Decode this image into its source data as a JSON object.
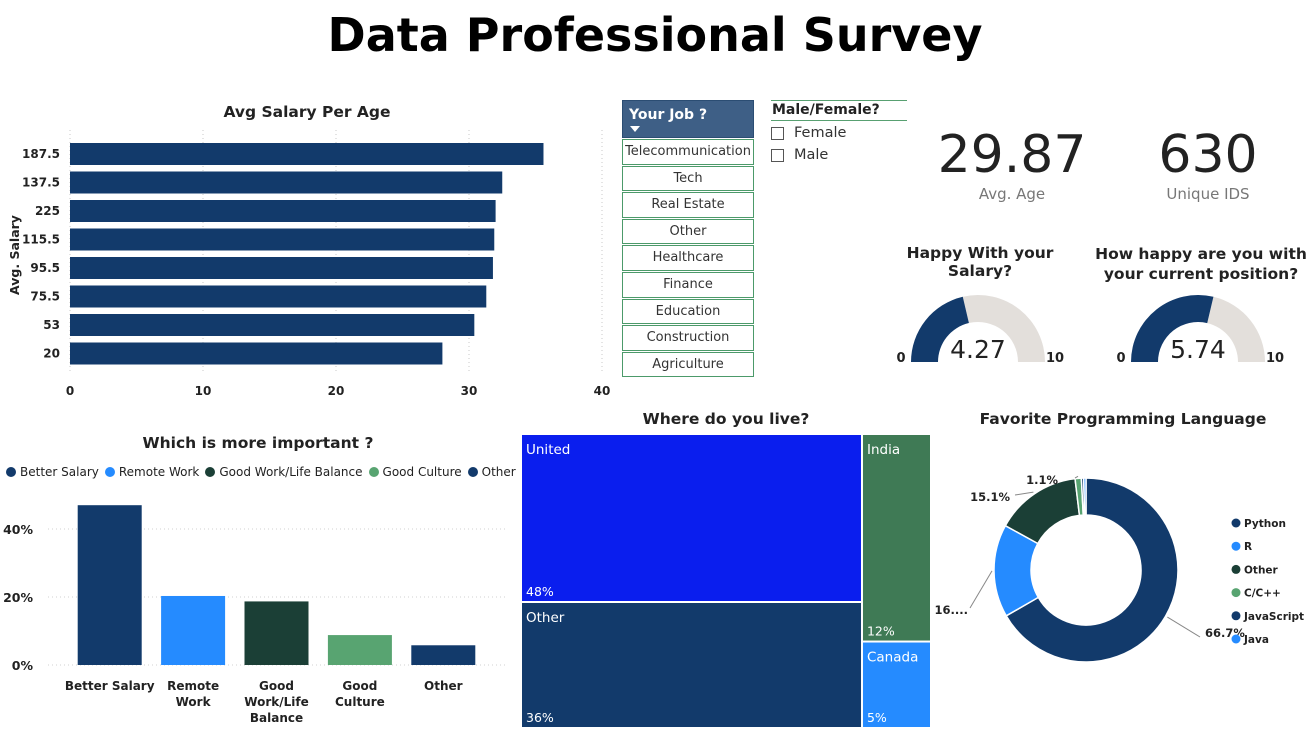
{
  "title": "Data Professional Survey",
  "colors": {
    "navy": "#123a6b",
    "blue": "#258bff",
    "darkgreen": "#1b3f36",
    "green": "#58a471",
    "brightblue": "#0a1eee",
    "midgreen": "#3f7a55",
    "gaugebg": "#e3dfdb",
    "slicer": "#3e5f86"
  },
  "job_slicer": {
    "header": "Your Job ?",
    "items": [
      "Telecommunication",
      "Tech",
      "Real Estate",
      "Other",
      "Healthcare",
      "Finance",
      "Education",
      "Construction",
      "Agriculture"
    ]
  },
  "gender_slicer": {
    "header": "Male/Female?",
    "options": [
      "Female",
      "Male"
    ]
  },
  "kpis": [
    {
      "value": "29.87",
      "label": "Avg. Age"
    },
    {
      "value": "630",
      "label": "Unique IDS"
    }
  ],
  "chart_data": [
    {
      "type": "bar",
      "orientation": "horizontal",
      "title": "Avg Salary Per Age",
      "ylabel": "Avg. Salary",
      "xlabel": "",
      "categories": [
        "187.5",
        "137.5",
        "225",
        "115.5",
        "95.5",
        "75.5",
        "53",
        "20"
      ],
      "values": [
        35.6,
        32.5,
        32.0,
        31.9,
        31.8,
        31.3,
        30.4,
        28.0
      ],
      "xlim": [
        0,
        40
      ],
      "xticks": [
        "0",
        "10",
        "20",
        "30",
        "40"
      ],
      "grid": true
    },
    {
      "type": "gauge",
      "title": "Happy With your Salary?",
      "value": 4.27,
      "value_label": "4.27",
      "min": 0,
      "max": 10,
      "min_label": "0",
      "max_label": "10"
    },
    {
      "type": "gauge",
      "title_lines": [
        "How happy are you with",
        "your current position?"
      ],
      "value": 5.74,
      "value_label": "5.74",
      "min": 0,
      "max": 10,
      "min_label": "0",
      "max_label": "10"
    },
    {
      "type": "bar",
      "title": "Which is more important ?",
      "legend": [
        "Better Salary",
        "Remote Work",
        "Good Work/Life Balance",
        "Good Culture",
        "Other"
      ],
      "legend_colors": [
        "#123a6b",
        "#258bff",
        "#1b3f36",
        "#58a471",
        "#123a6b"
      ],
      "categories": [
        "Better Salary",
        "Remote Work",
        "Good Work/Life Balance",
        "Good Culture",
        "Other"
      ],
      "category_lines": [
        [
          "Better Salary"
        ],
        [
          "Remote",
          "Work"
        ],
        [
          "Good",
          "Work/Life",
          "Balance"
        ],
        [
          "Good",
          "Culture"
        ],
        [
          "Other"
        ]
      ],
      "values": [
        47,
        20.3,
        18.7,
        8.8,
        5.8
      ],
      "colors": [
        "#123a6b",
        "#258bff",
        "#1b3f36",
        "#58a471",
        "#123a6b"
      ],
      "ylim": [
        0,
        50
      ],
      "yticks": [
        0,
        20,
        40
      ],
      "ytick_labels": [
        "0%",
        "20%",
        "40%"
      ],
      "grid": true
    },
    {
      "type": "treemap",
      "title": "Where do you live?",
      "items": [
        {
          "name": "United",
          "value": 48,
          "label": "48%",
          "color": "#0a1eee"
        },
        {
          "name": "Other",
          "value": 36,
          "label": "36%",
          "color": "#123a6b"
        },
        {
          "name": "India",
          "value": 12,
          "label": "12%",
          "color": "#3f7a55"
        },
        {
          "name": "Canada",
          "value": 5,
          "label": "5%",
          "color": "#258bff"
        }
      ]
    },
    {
      "type": "pie",
      "donut": true,
      "title": "Favorite Programming Language",
      "slices": [
        {
          "name": "Python",
          "value": 66.7,
          "label": "66.7%",
          "color": "#123a6b"
        },
        {
          "name": "R",
          "value": 16.3,
          "label": "16....",
          "color": "#258bff"
        },
        {
          "name": "Other",
          "value": 15.1,
          "label": "15.1%",
          "color": "#1b3f36"
        },
        {
          "name": "C/C++",
          "value": 1.1,
          "label": "1.1%",
          "color": "#58a471"
        },
        {
          "name": "JavaScript",
          "value": 0.4,
          "label": "",
          "color": "#123a6b"
        },
        {
          "name": "Java",
          "value": 0.4,
          "label": "",
          "color": "#258bff"
        }
      ]
    }
  ]
}
